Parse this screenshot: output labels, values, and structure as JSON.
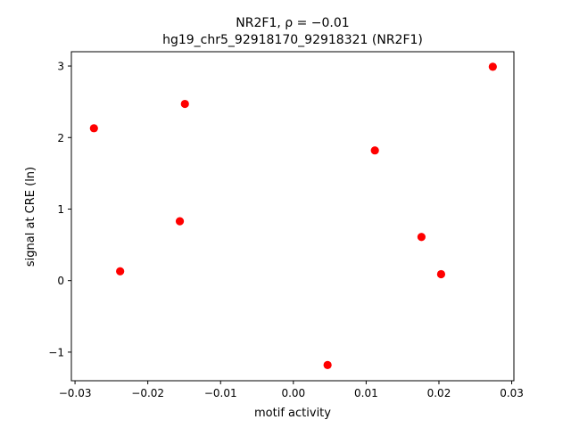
{
  "chart_data": {
    "type": "scatter",
    "title": "NR2F1, ρ = −0.01",
    "subtitle": "hg19_chr5_92918170_92918321 (NR2F1)",
    "xlabel": "motif activity",
    "ylabel": "signal at CRE (ln)",
    "xlim": [
      -0.0305,
      0.0303
    ],
    "ylim": [
      -1.4,
      3.2
    ],
    "xticks": [
      -0.03,
      -0.02,
      -0.01,
      0.0,
      0.01,
      0.02,
      0.03
    ],
    "xtick_labels": [
      "−0.03",
      "−0.02",
      "−0.01",
      "0.00",
      "0.01",
      "0.02",
      "0.03"
    ],
    "yticks": [
      -1,
      0,
      1,
      2,
      3
    ],
    "ytick_labels": [
      "−1",
      "0",
      "1",
      "2",
      "3"
    ],
    "grid": false,
    "legend": "none",
    "marker_color": "#ff0000",
    "points": [
      {
        "x": -0.0274,
        "y": 2.13
      },
      {
        "x": -0.0238,
        "y": 0.13
      },
      {
        "x": -0.0156,
        "y": 0.83
      },
      {
        "x": -0.0149,
        "y": 2.47
      },
      {
        "x": 0.0047,
        "y": -1.18
      },
      {
        "x": 0.0112,
        "y": 1.82
      },
      {
        "x": 0.0176,
        "y": 0.61
      },
      {
        "x": 0.0203,
        "y": 0.09
      },
      {
        "x": 0.0274,
        "y": 2.99
      }
    ]
  }
}
